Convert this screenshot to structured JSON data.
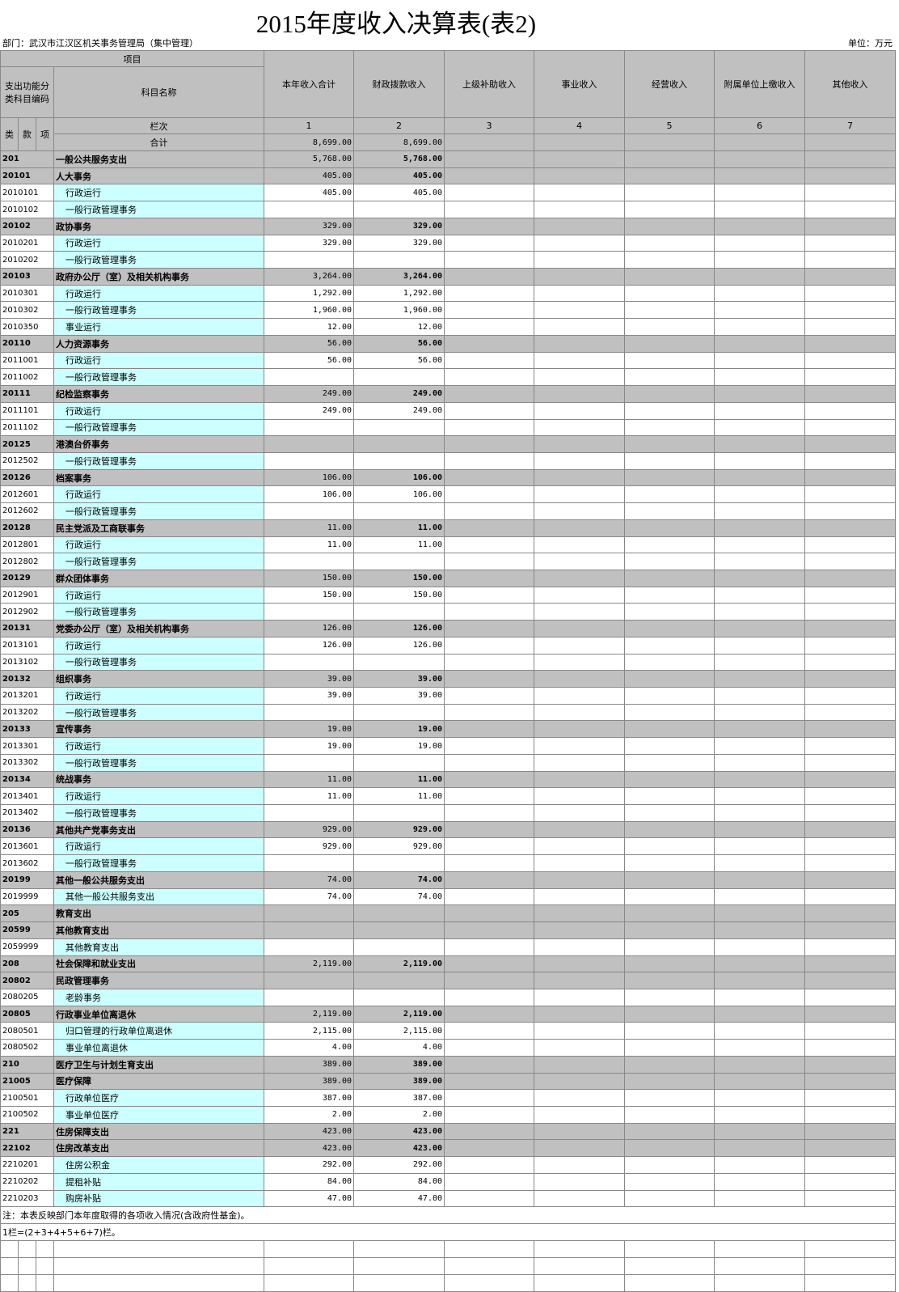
{
  "header": {
    "title": "2015年度收入决算表(表2)",
    "department": "部门：武汉市江汉区机关事务管理局（集中管理）",
    "unit": "单位：万元"
  },
  "table": {
    "item_label": "项目",
    "code_label": "支出功能分类科目编码",
    "name_label": "科目名称",
    "level_labels": [
      "类",
      "款",
      "项"
    ],
    "columns": [
      "本年收入合计",
      "财政拨款收入",
      "上级补助收入",
      "事业收入",
      "经营收入",
      "附属单位上缴收入",
      "其他收入"
    ],
    "column_row_label": "栏次",
    "column_numbers": [
      "1",
      "2",
      "3",
      "4",
      "5",
      "6",
      "7"
    ],
    "total_label": "合计",
    "total_values": [
      "8,699.00",
      "8,699.00"
    ],
    "rows": [
      [
        "201",
        "一般公共服务支出",
        "5,768.00",
        "5,768.00"
      ],
      [
        "20101",
        "人大事务",
        "405.00",
        "405.00"
      ],
      [
        "2010101",
        "行政运行",
        "405.00",
        "405.00"
      ],
      [
        "2010102",
        "一般行政管理事务"
      ],
      [
        "20102",
        "政协事务",
        "329.00",
        "329.00"
      ],
      [
        "2010201",
        "行政运行",
        "329.00",
        "329.00"
      ],
      [
        "2010202",
        "一般行政管理事务"
      ],
      [
        "20103",
        "政府办公厅（室）及相关机构事务",
        "3,264.00",
        "3,264.00"
      ],
      [
        "2010301",
        "行政运行",
        "1,292.00",
        "1,292.00"
      ],
      [
        "2010302",
        "一般行政管理事务",
        "1,960.00",
        "1,960.00"
      ],
      [
        "2010350",
        "事业运行",
        "12.00",
        "12.00"
      ],
      [
        "20110",
        "人力资源事务",
        "56.00",
        "56.00"
      ],
      [
        "2011001",
        "行政运行",
        "56.00",
        "56.00"
      ],
      [
        "2011002",
        "一般行政管理事务"
      ],
      [
        "20111",
        "纪检监察事务",
        "249.00",
        "249.00"
      ],
      [
        "2011101",
        "行政运行",
        "249.00",
        "249.00"
      ],
      [
        "2011102",
        "一般行政管理事务"
      ],
      [
        "20125",
        "港澳台侨事务"
      ],
      [
        "2012502",
        "一般行政管理事务"
      ],
      [
        "20126",
        "档案事务",
        "106.00",
        "106.00"
      ],
      [
        "2012601",
        "行政运行",
        "106.00",
        "106.00"
      ],
      [
        "2012602",
        "一般行政管理事务"
      ],
      [
        "20128",
        "民主党派及工商联事务",
        "11.00",
        "11.00"
      ],
      [
        "2012801",
        "行政运行",
        "11.00",
        "11.00"
      ],
      [
        "2012802",
        "一般行政管理事务"
      ],
      [
        "20129",
        "群众团体事务",
        "150.00",
        "150.00"
      ],
      [
        "2012901",
        "行政运行",
        "150.00",
        "150.00"
      ],
      [
        "2012902",
        "一般行政管理事务"
      ],
      [
        "20131",
        "党委办公厅（室）及相关机构事务",
        "126.00",
        "126.00"
      ],
      [
        "2013101",
        "行政运行",
        "126.00",
        "126.00"
      ],
      [
        "2013102",
        "一般行政管理事务"
      ],
      [
        "20132",
        "组织事务",
        "39.00",
        "39.00"
      ],
      [
        "2013201",
        "行政运行",
        "39.00",
        "39.00"
      ],
      [
        "2013202",
        "一般行政管理事务"
      ],
      [
        "20133",
        "宣传事务",
        "19.00",
        "19.00"
      ],
      [
        "2013301",
        "行政运行",
        "19.00",
        "19.00"
      ],
      [
        "2013302",
        "一般行政管理事务"
      ],
      [
        "20134",
        "统战事务",
        "11.00",
        "11.00"
      ],
      [
        "2013401",
        "行政运行",
        "11.00",
        "11.00"
      ],
      [
        "2013402",
        "一般行政管理事务"
      ],
      [
        "20136",
        "其他共产党事务支出",
        "929.00",
        "929.00"
      ],
      [
        "2013601",
        "行政运行",
        "929.00",
        "929.00"
      ],
      [
        "2013602",
        "一般行政管理事务"
      ],
      [
        "20199",
        "其他一般公共服务支出",
        "74.00",
        "74.00"
      ],
      [
        "2019999",
        "其他一般公共服务支出",
        "74.00",
        "74.00"
      ],
      [
        "205",
        "教育支出"
      ],
      [
        "20599",
        "其他教育支出"
      ],
      [
        "2059999",
        "其他教育支出"
      ],
      [
        "208",
        "社会保障和就业支出",
        "2,119.00",
        "2,119.00"
      ],
      [
        "20802",
        "民政管理事务"
      ],
      [
        "2080205",
        "老龄事务"
      ],
      [
        "20805",
        "行政事业单位离退休",
        "2,119.00",
        "2,119.00"
      ],
      [
        "2080501",
        "归口管理的行政单位离退休",
        "2,115.00",
        "2,115.00"
      ],
      [
        "2080502",
        "事业单位离退休",
        "4.00",
        "4.00"
      ],
      [
        "210",
        "医疗卫生与计划生育支出",
        "389.00",
        "389.00"
      ],
      [
        "21005",
        "医疗保障",
        "389.00",
        "389.00"
      ],
      [
        "2100501",
        "行政单位医疗",
        "387.00",
        "387.00"
      ],
      [
        "2100502",
        "事业单位医疗",
        "2.00",
        "2.00"
      ],
      [
        "221",
        "住房保障支出",
        "423.00",
        "423.00"
      ],
      [
        "22102",
        "住房改革支出",
        "423.00",
        "423.00"
      ],
      [
        "2210201",
        "住房公积金",
        "292.00",
        "292.00"
      ],
      [
        "2210202",
        "提租补贴",
        "84.00",
        "84.00"
      ],
      [
        "2210203",
        "购房补贴",
        "47.00",
        "47.00"
      ]
    ]
  },
  "notes": [
    "注：本表反映部门本年度取得的各项收入情况(含政府性基金)。",
    "1栏=(2+3+4+5+6+7)栏。"
  ]
}
